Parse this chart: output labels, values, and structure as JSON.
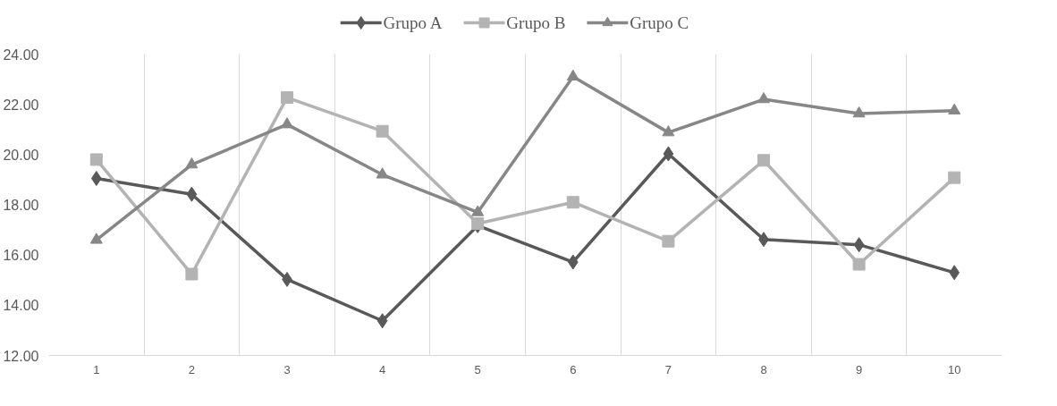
{
  "chart_data": {
    "type": "line",
    "categories": [
      "1",
      "2",
      "3",
      "4",
      "5",
      "6",
      "7",
      "8",
      "9",
      "10"
    ],
    "series": [
      {
        "name": "Grupo A",
        "color": "#595959",
        "marker": "diamond",
        "values": [
          19.05,
          18.42,
          15.03,
          13.38,
          17.17,
          15.72,
          20.03,
          16.62,
          16.41,
          15.3
        ]
      },
      {
        "name": "Grupo B",
        "color": "#b3b3b3",
        "marker": "square",
        "values": [
          19.8,
          15.24,
          22.27,
          20.93,
          17.25,
          18.1,
          16.55,
          19.77,
          15.63,
          19.08
        ]
      },
      {
        "name": "Grupo C",
        "color": "#878787",
        "marker": "triangle",
        "values": [
          16.6,
          19.6,
          21.2,
          19.2,
          17.7,
          23.1,
          20.88,
          22.2,
          21.63,
          21.75
        ]
      }
    ],
    "ylim": [
      12,
      24
    ],
    "yticks": [
      {
        "value": 12,
        "label": "12.00"
      },
      {
        "value": 14,
        "label": "14.00"
      },
      {
        "value": 16,
        "label": "16.00"
      },
      {
        "value": 18,
        "label": "18.00"
      },
      {
        "value": 20,
        "label": "20.00"
      },
      {
        "value": 22,
        "label": "22.00"
      },
      {
        "value": 24,
        "label": "24.00"
      }
    ],
    "grid": "x",
    "legend": "top",
    "line_style": "solid"
  }
}
